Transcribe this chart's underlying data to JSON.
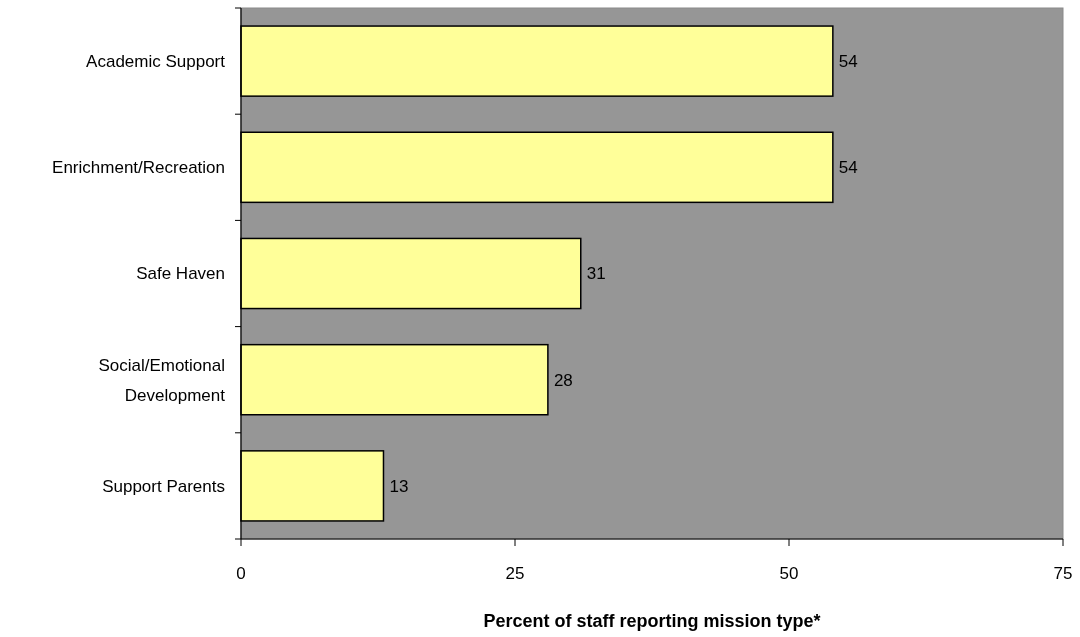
{
  "chart_data": {
    "type": "bar",
    "orientation": "horizontal",
    "xlabel": "Percent of staff reporting mission type*",
    "categories": [
      "Academic Support",
      "Enrichment/Recreation",
      "Safe Haven",
      "Social/Emotional Development",
      "Support Parents"
    ],
    "values": [
      54,
      54,
      31,
      28,
      13
    ],
    "color": "#ffff99",
    "xlim": [
      0,
      75
    ],
    "xticks": [
      0,
      25,
      50,
      75
    ],
    "grid": false,
    "data_labels": true
  }
}
